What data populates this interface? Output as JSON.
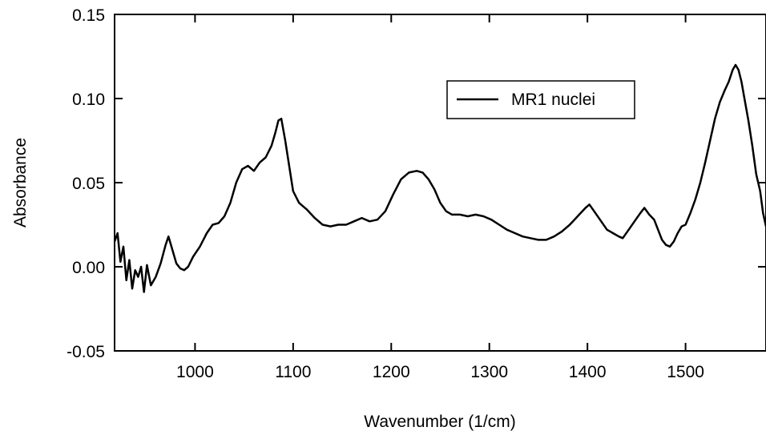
{
  "chart_data": {
    "type": "line",
    "title": "",
    "xlabel": "Wavenumber (1/cm)",
    "ylabel": "Absorbance",
    "xlim": [
      918,
      1582
    ],
    "ylim": [
      -0.05,
      0.15
    ],
    "x_ticks": [
      1000,
      1100,
      1200,
      1300,
      1400,
      1500
    ],
    "x_tick_labels": [
      "1000",
      "1100",
      "1200",
      "1300",
      "1400",
      "1500"
    ],
    "y_ticks": [
      -0.05,
      0.0,
      0.05,
      0.1,
      0.15
    ],
    "y_tick_labels": [
      "-0.05",
      "0.00",
      "0.05",
      "0.10",
      "0.15"
    ],
    "grid": false,
    "legend_position": "top-right",
    "series": [
      {
        "name": "MR1 nuclei",
        "color": "#000000",
        "x": [
          918,
          921,
          924,
          927,
          930,
          933,
          936,
          939,
          942,
          945,
          948,
          951,
          955,
          960,
          965,
          970,
          973,
          977,
          981,
          985,
          989,
          993,
          998,
          1005,
          1012,
          1018,
          1024,
          1030,
          1036,
          1042,
          1048,
          1054,
          1060,
          1066,
          1072,
          1078,
          1082,
          1085,
          1088,
          1092,
          1096,
          1100,
          1106,
          1114,
          1122,
          1130,
          1138,
          1146,
          1154,
          1162,
          1170,
          1178,
          1186,
          1194,
          1202,
          1210,
          1218,
          1226,
          1232,
          1238,
          1244,
          1250,
          1256,
          1262,
          1270,
          1278,
          1286,
          1294,
          1302,
          1310,
          1318,
          1326,
          1334,
          1342,
          1350,
          1358,
          1366,
          1374,
          1382,
          1390,
          1398,
          1402,
          1408,
          1414,
          1420,
          1426,
          1432,
          1436,
          1442,
          1448,
          1454,
          1458,
          1463,
          1468,
          1472,
          1476,
          1480,
          1484,
          1488,
          1492,
          1496,
          1500,
          1505,
          1510,
          1515,
          1520,
          1525,
          1530,
          1535,
          1540,
          1544,
          1548,
          1551,
          1554,
          1557,
          1560,
          1564,
          1568,
          1572,
          1576,
          1579,
          1582
        ],
        "values": [
          0.015,
          0.02,
          0.003,
          0.012,
          -0.008,
          0.004,
          -0.013,
          -0.002,
          -0.006,
          0.0,
          -0.015,
          0.001,
          -0.011,
          -0.006,
          0.002,
          0.013,
          0.018,
          0.01,
          0.002,
          -0.001,
          -0.002,
          0.0,
          0.006,
          0.012,
          0.02,
          0.025,
          0.026,
          0.03,
          0.038,
          0.05,
          0.058,
          0.06,
          0.057,
          0.062,
          0.065,
          0.072,
          0.08,
          0.087,
          0.088,
          0.075,
          0.06,
          0.045,
          0.038,
          0.034,
          0.029,
          0.025,
          0.024,
          0.025,
          0.025,
          0.027,
          0.029,
          0.027,
          0.028,
          0.033,
          0.043,
          0.052,
          0.056,
          0.057,
          0.056,
          0.052,
          0.046,
          0.038,
          0.033,
          0.031,
          0.031,
          0.03,
          0.031,
          0.03,
          0.028,
          0.025,
          0.022,
          0.02,
          0.018,
          0.017,
          0.016,
          0.016,
          0.018,
          0.021,
          0.025,
          0.03,
          0.035,
          0.037,
          0.032,
          0.027,
          0.022,
          0.02,
          0.018,
          0.017,
          0.022,
          0.027,
          0.032,
          0.035,
          0.031,
          0.028,
          0.022,
          0.016,
          0.013,
          0.012,
          0.015,
          0.02,
          0.024,
          0.025,
          0.032,
          0.04,
          0.05,
          0.062,
          0.075,
          0.088,
          0.098,
          0.105,
          0.11,
          0.117,
          0.12,
          0.117,
          0.11,
          0.1,
          0.087,
          0.072,
          0.055,
          0.045,
          0.032,
          0.024
        ]
      }
    ]
  }
}
